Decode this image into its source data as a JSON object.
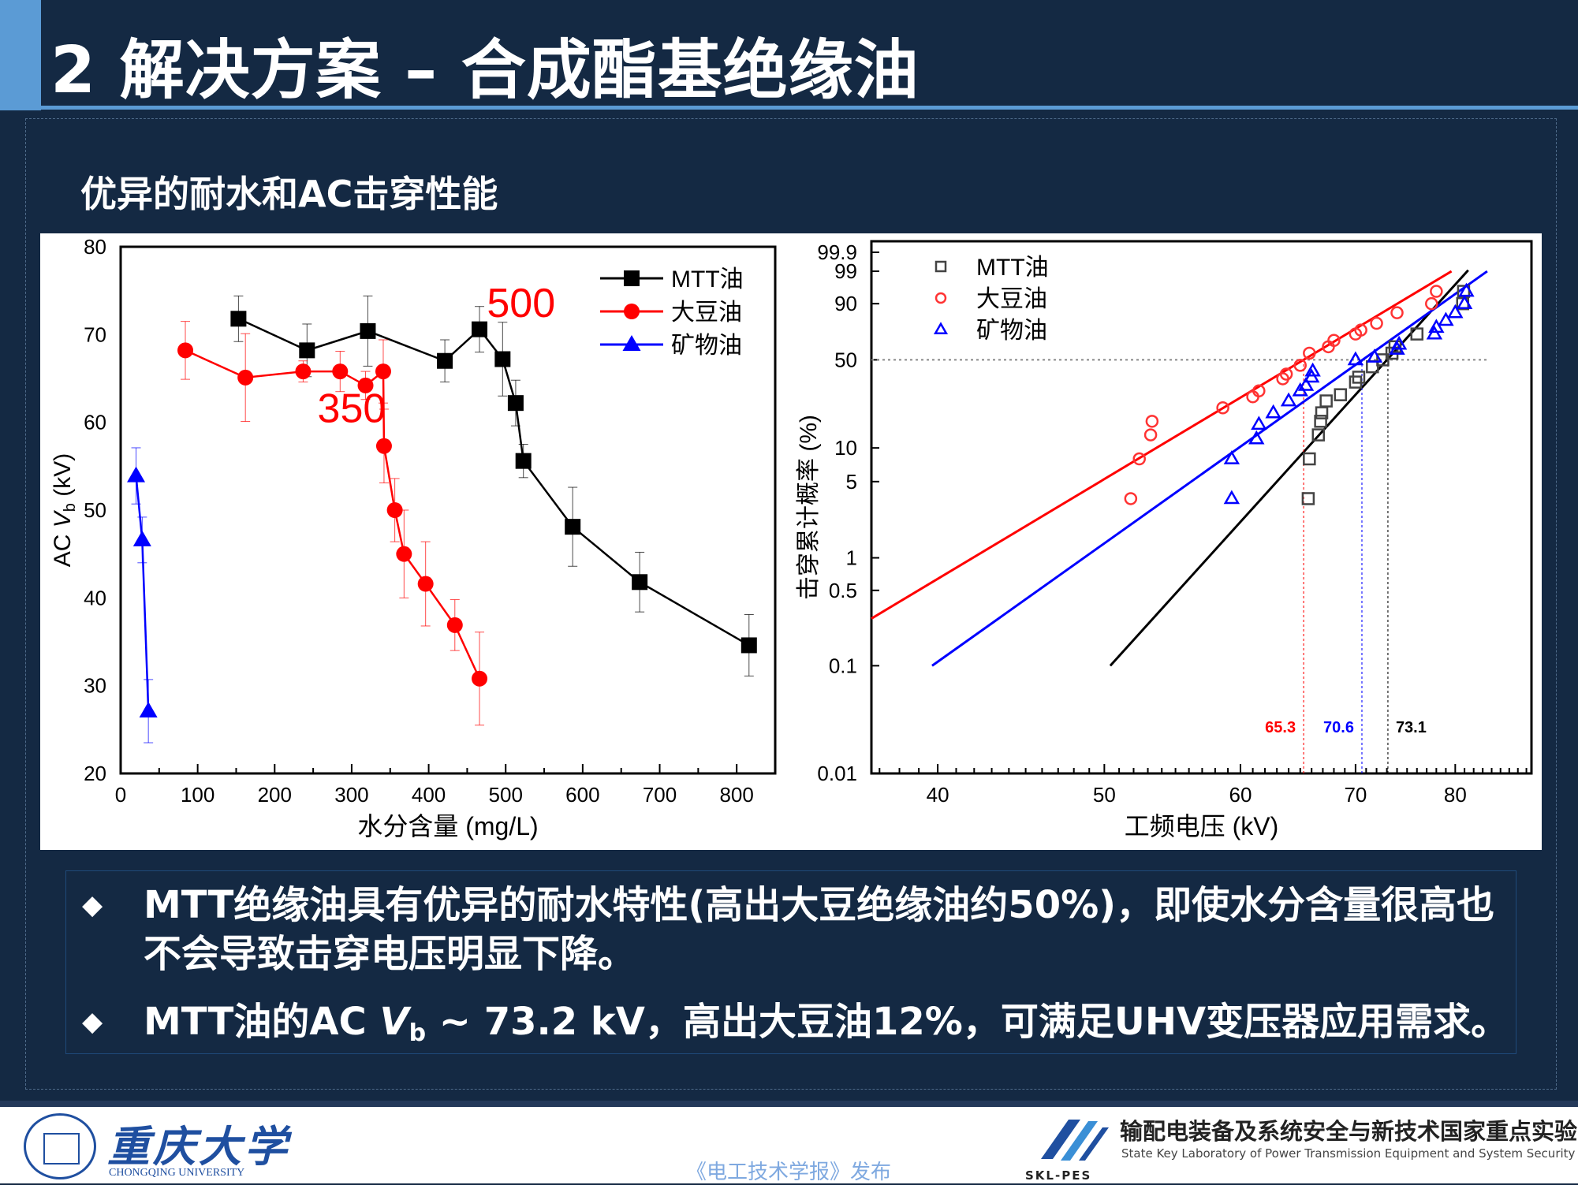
{
  "header": {
    "title": "2 解决方案 – 合成酯基绝缘油",
    "subtitle": "优异的耐水和AC击穿性能"
  },
  "colors": {
    "background": "#142943",
    "accent": "#5b9bd5",
    "mtt": "#000000",
    "soybean": "#ff0000",
    "mineral": "#0000ff"
  },
  "chart_data": [
    {
      "type": "line",
      "xlabel": "水分含量 (mg/L)",
      "ylabel_prefix": "AC ",
      "ylabel_var": "V",
      "ylabel_sub": "b",
      "ylabel_suffix": " (kV)",
      "xlim": [
        0,
        850
      ],
      "ylim": [
        20,
        80
      ],
      "xticks": [
        0,
        100,
        200,
        300,
        400,
        500,
        600,
        700,
        800
      ],
      "yticks": [
        20,
        30,
        40,
        50,
        60,
        70,
        80
      ],
      "legend_position": "top-right",
      "series": [
        {
          "name": "MTT油",
          "color": "#000000",
          "marker": "square",
          "x": [
            153,
            242,
            321,
            421,
            466,
            496,
            513,
            523,
            587,
            674,
            816
          ],
          "y": [
            71.8,
            68.2,
            70.4,
            67.0,
            70.6,
            67.2,
            62.2,
            55.6,
            48.1,
            41.8,
            34.6
          ],
          "err": [
            2.6,
            3.0,
            4.0,
            2.4,
            2.6,
            4.2,
            2.6,
            1.9,
            4.5,
            3.4,
            3.5
          ]
        },
        {
          "name": "大豆油",
          "color": "#ff0000",
          "marker": "circle",
          "x": [
            84,
            162,
            237,
            285,
            318,
            341,
            342,
            356,
            368,
            396,
            434,
            466
          ],
          "y": [
            68.2,
            65.1,
            65.8,
            65.8,
            64.2,
            65.8,
            57.3,
            50.0,
            45.0,
            41.6,
            36.9,
            30.8
          ],
          "err": [
            3.3,
            5.0,
            1.2,
            2.3,
            1.6,
            3.6,
            4.2,
            3.6,
            5.0,
            4.8,
            2.9,
            5.3
          ]
        },
        {
          "name": "矿物油",
          "color": "#0000ff",
          "marker": "triangle",
          "x": [
            20,
            28,
            36
          ],
          "y": [
            53.9,
            46.6,
            27.1
          ],
          "err": [
            3.2,
            2.6,
            3.6
          ]
        }
      ],
      "annotations": [
        {
          "text": "350",
          "x": 300,
          "y": 60,
          "color": "#ff0000"
        },
        {
          "text": "500",
          "x": 520,
          "y": 72,
          "color": "#ff0000"
        }
      ]
    },
    {
      "type": "scatter",
      "scale": "weibull",
      "xlabel": "工频电压 (kV)",
      "ylabel": "击穿累计概率 (%)",
      "xlim": [
        36.6,
        88.6
      ],
      "ylim": [
        0.01,
        99.9
      ],
      "xticks": [
        40,
        50,
        60,
        70,
        80
      ],
      "yticks": [
        0.01,
        0.1,
        0.5,
        1,
        5,
        10,
        50,
        90,
        99,
        99.9
      ],
      "ytick_labels": [
        "0.01",
        "0.1",
        "0.5",
        "1",
        "5",
        "10",
        "50",
        "90",
        "99",
        "99.9"
      ],
      "legend_position": "top-left",
      "reference_level": 50,
      "series": [
        {
          "name": "MTT油",
          "color": "#444444",
          "line_color": "#000000",
          "marker": "square",
          "p50": 73.1,
          "p50_label": "73.1",
          "points": [
            [
              65.7,
              3.5
            ],
            [
              65.8,
              8
            ],
            [
              66.6,
              13
            ],
            [
              66.8,
              17
            ],
            [
              66.9,
              20
            ],
            [
              67.3,
              25
            ],
            [
              68.6,
              28
            ],
            [
              70.0,
              35
            ],
            [
              70.3,
              38
            ],
            [
              71.6,
              45
            ],
            [
              72.6,
              50
            ],
            [
              73.5,
              55
            ],
            [
              73.8,
              60
            ],
            [
              76.0,
              70
            ],
            [
              80.8,
              90
            ],
            [
              80.9,
              95
            ]
          ],
          "fit": [
            [
              50.4,
              0.1
            ],
            [
              81.4,
              99.1
            ]
          ]
        },
        {
          "name": "大豆油",
          "color": "#ff3333",
          "line_color": "#ff0000",
          "marker": "circle",
          "p50": 65.3,
          "p50_label": "65.3",
          "points": [
            [
              51.8,
              3.5
            ],
            [
              52.4,
              8
            ],
            [
              53.2,
              13
            ],
            [
              53.3,
              17
            ],
            [
              58.6,
              22
            ],
            [
              61.0,
              27
            ],
            [
              61.5,
              30
            ],
            [
              63.5,
              37
            ],
            [
              63.8,
              40
            ],
            [
              65.0,
              46
            ],
            [
              65.8,
              55
            ],
            [
              67.5,
              60
            ],
            [
              68.0,
              65
            ],
            [
              70.0,
              70
            ],
            [
              70.5,
              73
            ],
            [
              72.0,
              78
            ],
            [
              74.0,
              85
            ],
            [
              77.5,
              90
            ],
            [
              78.0,
              95
            ]
          ],
          "fit": [
            [
              36.6,
              0.274
            ],
            [
              79.6,
              99.0
            ]
          ]
        },
        {
          "name": "矿物油",
          "color": "#0000ff",
          "line_color": "#0000ff",
          "marker": "triangle",
          "p50": 70.6,
          "p50_label": "70.6",
          "points": [
            [
              59.3,
              3.5
            ],
            [
              59.3,
              8
            ],
            [
              61.3,
              12
            ],
            [
              61.5,
              16
            ],
            [
              62.7,
              20
            ],
            [
              64.0,
              25
            ],
            [
              65.0,
              30
            ],
            [
              65.5,
              33
            ],
            [
              66.0,
              38
            ],
            [
              66.1,
              42
            ],
            [
              70.0,
              50
            ],
            [
              71.8,
              52
            ],
            [
              74.0,
              58
            ],
            [
              74.2,
              62
            ],
            [
              77.8,
              70
            ],
            [
              78.0,
              75
            ],
            [
              79.0,
              80
            ],
            [
              80.0,
              85
            ],
            [
              81.0,
              90
            ],
            [
              81.2,
              95
            ]
          ],
          "fit": [
            [
              39.7,
              0.1
            ],
            [
              83.5,
              99.0
            ]
          ]
        }
      ]
    }
  ],
  "bullets": [
    {
      "text": "MTT绝缘油具有优异的耐水特性(高出大豆绝缘油约50%)，即使水分含量很高也不会导致击穿电压明显下降。"
    },
    {
      "pre": "MTT油的AC ",
      "var": "V",
      "sub": "b",
      "post": " ~ 73.2 kV，高出大豆油12%，可满足UHV变压器应用需求。"
    }
  ],
  "bullet_icon": "diamond-icon",
  "footer": {
    "university_name": "重庆大学",
    "university_en": "CHONGQING UNIVERSITY",
    "publisher": "《电工技术学报》发布",
    "lab_abbr": "SKL-PES",
    "lab_name": "输配电装备及系统安全与新技术国家重点实验室",
    "lab_en": "State Key Laboratory of Power Transmission Equipment and System Security"
  }
}
